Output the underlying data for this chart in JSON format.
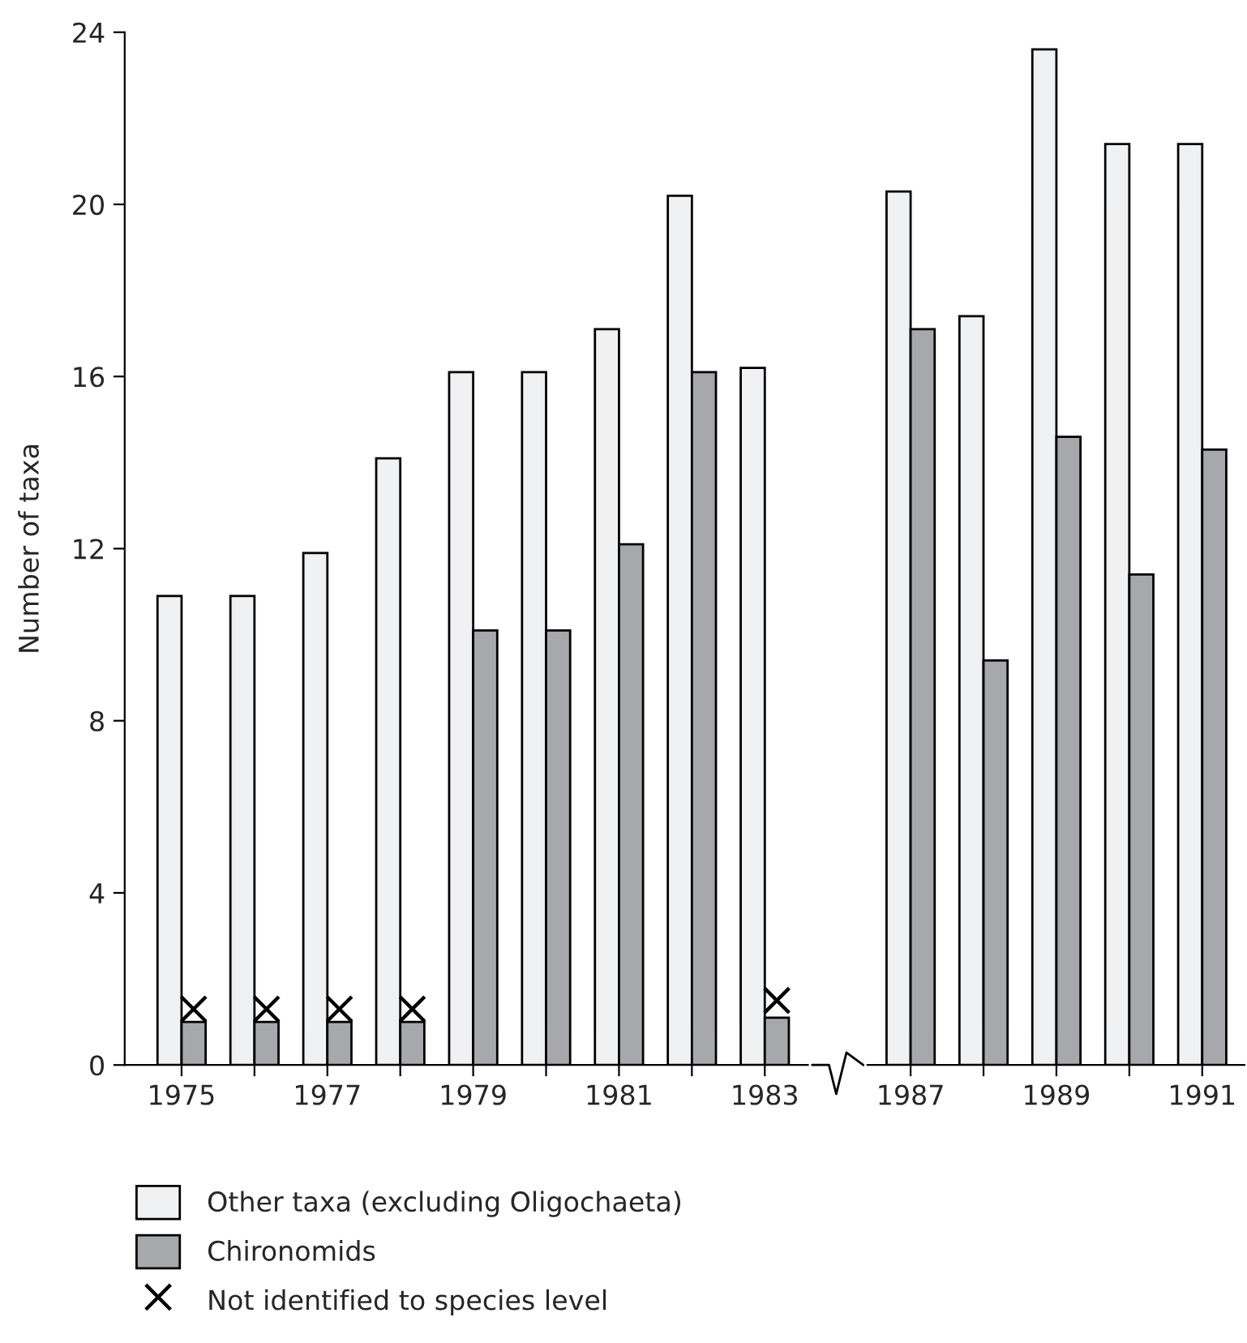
{
  "chart_data": {
    "type": "bar",
    "ylabel": "Number of taxa",
    "categories": [
      "1975",
      null,
      "1977",
      null,
      "1979",
      null,
      "1981",
      null,
      "1983",
      null,
      "1987",
      null,
      "1989",
      null,
      "1991"
    ],
    "series": [
      {
        "name": "Other taxa (excluding Oligochaeta)",
        "color": "#f0f1f3",
        "values": [
          10.9,
          10.9,
          11.9,
          14.1,
          16.1,
          16.1,
          17.1,
          20.2,
          16.2,
          null,
          20.3,
          17.4,
          23.6,
          21.4,
          21.4
        ]
      },
      {
        "name": "Chironomids",
        "color": "#a7a8ac",
        "values": [
          1,
          1,
          1,
          1,
          10.1,
          10.1,
          12.1,
          16.1,
          1.1,
          null,
          17.1,
          9.4,
          14.6,
          11.4,
          14.3
        ]
      },
      {
        "name": "Not identified to species level",
        "type": "scatter",
        "marker": "cross",
        "color": "#000000",
        "values": [
          1.3,
          1.3,
          1.3,
          1.3,
          null,
          null,
          null,
          null,
          1.5,
          null,
          null,
          null,
          null,
          null,
          null
        ]
      }
    ],
    "ylim": [
      0,
      24
    ],
    "yticks": [
      0,
      4,
      8,
      12,
      16,
      20,
      24
    ],
    "grid": false,
    "legend": "bottom"
  }
}
